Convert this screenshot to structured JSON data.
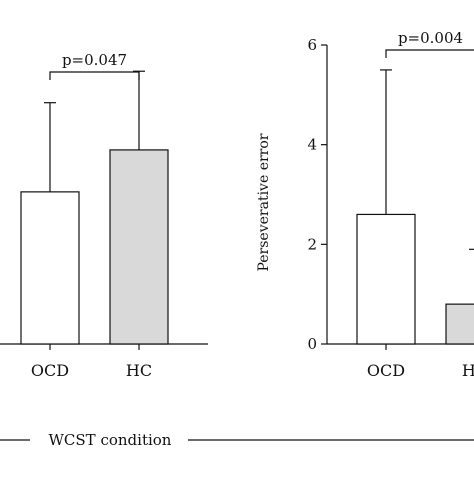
{
  "chart_data": [
    {
      "type": "bar",
      "categories": [
        "OCD",
        "HC"
      ],
      "values": [
        29,
        37
      ],
      "errors_upper": [
        46,
        52
      ],
      "colors": [
        "#ffffff",
        "#d9d9d9"
      ],
      "title": "",
      "xlabel": "",
      "ylabel": "",
      "ylim": [
        0,
        57
      ],
      "significance": {
        "label": "p=0.047",
        "between": [
          "OCD",
          "HC"
        ]
      }
    },
    {
      "type": "bar",
      "categories": [
        "OCD",
        "HC"
      ],
      "values": [
        2.6,
        0.8
      ],
      "errors_upper": [
        5.5,
        1.9
      ],
      "colors": [
        "#ffffff",
        "#d9d9d9"
      ],
      "title": "",
      "xlabel": "",
      "ylabel": "Perseverative error",
      "yticks": [
        "0",
        "2",
        "4",
        "6"
      ],
      "ylim": [
        0,
        6
      ],
      "significance": {
        "label": "p=0.004",
        "between": [
          "OCD",
          "HC"
        ]
      }
    }
  ],
  "footer": {
    "label": "WCST condition"
  },
  "colors": {
    "ink": "#111111",
    "hc_fill": "#d9d9d9",
    "ocd_fill": "#ffffff"
  }
}
